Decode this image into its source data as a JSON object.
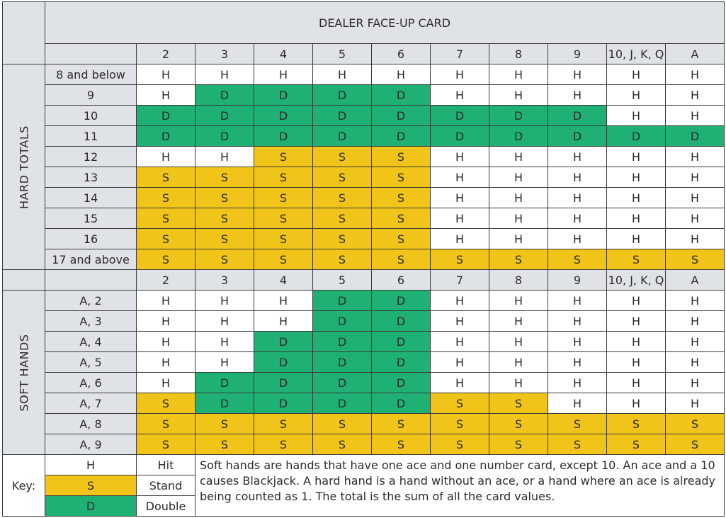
{
  "header": {
    "title": "DEALER FACE-UP CARD"
  },
  "dealer_cards": [
    "2",
    "3",
    "4",
    "5",
    "6",
    "7",
    "8",
    "9",
    "10, J, K, Q",
    "A"
  ],
  "colors": {
    "H": "#ffffff",
    "S": "#f0c419",
    "D": "#1fb173",
    "header_bg": "#dfe3e8"
  },
  "hard": {
    "label": "HARD TOTALS",
    "rows": [
      {
        "label": "8 and below",
        "cells": [
          "H",
          "H",
          "H",
          "H",
          "H",
          "H",
          "H",
          "H",
          "H",
          "H"
        ]
      },
      {
        "label": "9",
        "cells": [
          "H",
          "D",
          "D",
          "D",
          "D",
          "H",
          "H",
          "H",
          "H",
          "H"
        ]
      },
      {
        "label": "10",
        "cells": [
          "D",
          "D",
          "D",
          "D",
          "D",
          "D",
          "D",
          "D",
          "H",
          "H"
        ]
      },
      {
        "label": "11",
        "cells": [
          "D",
          "D",
          "D",
          "D",
          "D",
          "D",
          "D",
          "D",
          "D",
          "D"
        ]
      },
      {
        "label": "12",
        "cells": [
          "H",
          "H",
          "S",
          "S",
          "S",
          "H",
          "H",
          "H",
          "H",
          "H"
        ]
      },
      {
        "label": "13",
        "cells": [
          "S",
          "S",
          "S",
          "S",
          "S",
          "H",
          "H",
          "H",
          "H",
          "H"
        ]
      },
      {
        "label": "14",
        "cells": [
          "S",
          "S",
          "S",
          "S",
          "S",
          "H",
          "H",
          "H",
          "H",
          "H"
        ]
      },
      {
        "label": "15",
        "cells": [
          "S",
          "S",
          "S",
          "S",
          "S",
          "H",
          "H",
          "H",
          "H",
          "H"
        ]
      },
      {
        "label": "16",
        "cells": [
          "S",
          "S",
          "S",
          "S",
          "S",
          "H",
          "H",
          "H",
          "H",
          "H"
        ]
      },
      {
        "label": "17 and above",
        "cells": [
          "S",
          "S",
          "S",
          "S",
          "S",
          "S",
          "S",
          "S",
          "S",
          "S"
        ]
      }
    ]
  },
  "soft": {
    "label": "SOFT HANDS",
    "rows": [
      {
        "label": "A, 2",
        "cells": [
          "H",
          "H",
          "H",
          "D",
          "D",
          "H",
          "H",
          "H",
          "H",
          "H"
        ]
      },
      {
        "label": "A, 3",
        "cells": [
          "H",
          "H",
          "H",
          "D",
          "D",
          "H",
          "H",
          "H",
          "H",
          "H"
        ]
      },
      {
        "label": "A, 4",
        "cells": [
          "H",
          "H",
          "D",
          "D",
          "D",
          "H",
          "H",
          "H",
          "H",
          "H"
        ]
      },
      {
        "label": "A, 5",
        "cells": [
          "H",
          "H",
          "D",
          "D",
          "D",
          "H",
          "H",
          "H",
          "H",
          "H"
        ]
      },
      {
        "label": "A, 6",
        "cells": [
          "H",
          "D",
          "D",
          "D",
          "D",
          "H",
          "H",
          "H",
          "H",
          "H"
        ]
      },
      {
        "label": "A, 7",
        "cells": [
          "S",
          "D",
          "D",
          "D",
          "D",
          "S",
          "S",
          "H",
          "H",
          "H"
        ]
      },
      {
        "label": "A, 8",
        "cells": [
          "S",
          "S",
          "S",
          "S",
          "S",
          "S",
          "S",
          "S",
          "S",
          "S"
        ]
      },
      {
        "label": "A, 9",
        "cells": [
          "S",
          "S",
          "S",
          "S",
          "S",
          "S",
          "S",
          "S",
          "S",
          "S"
        ]
      }
    ]
  },
  "key": {
    "label": "Key:",
    "items": [
      {
        "code": "H",
        "meaning": "Hit"
      },
      {
        "code": "S",
        "meaning": "Stand"
      },
      {
        "code": "D",
        "meaning": "Double"
      }
    ],
    "note": "Soft hands are hands that have one ace and one number card, except 10. An ace and a 10 causes Blackjack. A hard hand is a hand without an ace, or a hand where an ace is already being counted as 1. The total is the sum of all the card values."
  }
}
